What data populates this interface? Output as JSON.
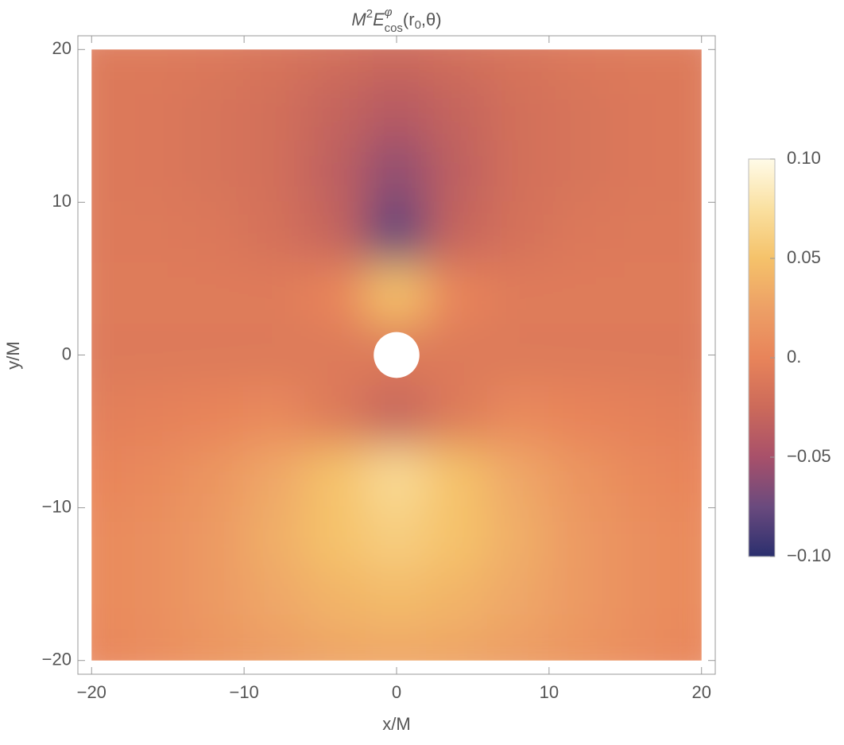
{
  "chart_data": {
    "type": "heatmap",
    "title_parts": [
      "M",
      "2",
      "E",
      "φ",
      "cos",
      "(r",
      "0",
      ",θ)"
    ],
    "x_label": "x/M",
    "y_label": "y/M",
    "x": [
      -20,
      -16,
      -12,
      -8,
      -4,
      0,
      4,
      8,
      12,
      16,
      20
    ],
    "y": [
      20,
      16,
      12,
      8,
      4,
      0,
      -4,
      -8,
      -12,
      -16,
      -20
    ],
    "z": [
      [
        -0.01,
        -0.01,
        -0.012,
        -0.015,
        -0.02,
        -0.025,
        -0.02,
        -0.015,
        -0.012,
        -0.01,
        -0.01
      ],
      [
        -0.01,
        -0.012,
        -0.015,
        -0.02,
        -0.03,
        -0.04,
        -0.03,
        -0.02,
        -0.015,
        -0.012,
        -0.01
      ],
      [
        -0.01,
        -0.012,
        -0.015,
        -0.02,
        -0.035,
        -0.06,
        -0.035,
        -0.02,
        -0.015,
        -0.012,
        -0.01
      ],
      [
        -0.01,
        -0.01,
        -0.012,
        -0.018,
        -0.03,
        -0.08,
        -0.03,
        -0.018,
        -0.012,
        -0.01,
        -0.01
      ],
      [
        -0.008,
        -0.008,
        -0.008,
        -0.008,
        0.0,
        0.05,
        0.0,
        -0.008,
        -0.008,
        -0.008,
        -0.008
      ],
      [
        -0.01,
        -0.01,
        -0.01,
        -0.01,
        -0.01,
        null,
        -0.01,
        -0.01,
        -0.01,
        -0.01,
        -0.01
      ],
      [
        -0.005,
        -0.003,
        0,
        0.005,
        -0.01,
        -0.03,
        -0.01,
        0.005,
        0,
        -0.003,
        -0.005
      ],
      [
        0,
        0.005,
        0.015,
        0.03,
        0.05,
        0.07,
        0.05,
        0.03,
        0.015,
        0.005,
        0
      ],
      [
        0.005,
        0.01,
        0.02,
        0.035,
        0.05,
        0.06,
        0.05,
        0.035,
        0.02,
        0.01,
        0.005
      ],
      [
        0.005,
        0.01,
        0.02,
        0.03,
        0.04,
        0.045,
        0.04,
        0.03,
        0.02,
        0.01,
        0.005
      ],
      [
        0.002,
        0.008,
        0.015,
        0.022,
        0.028,
        0.03,
        0.028,
        0.022,
        0.015,
        0.008,
        0.002
      ]
    ],
    "hole_radius": 1.5,
    "xlim": [
      -20.9,
      20.9
    ],
    "ylim": [
      -20.9,
      20.9
    ],
    "xticks": [
      {
        "value": -20,
        "label": "−20"
      },
      {
        "value": -10,
        "label": "−10"
      },
      0,
      10,
      20
    ],
    "yticks": [
      {
        "value": -20,
        "label": "−20"
      },
      {
        "value": -10,
        "label": "−10"
      },
      0,
      10,
      20
    ],
    "clim": [
      -0.1,
      0.1
    ],
    "cticks": [
      {
        "value": -0.1,
        "label": "−0.10"
      },
      {
        "value": -0.05,
        "label": "−0.05"
      },
      {
        "value": 0,
        "label": "0."
      },
      {
        "value": 0.05,
        "label": "0.05"
      },
      {
        "value": 0.1,
        "label": "0.10"
      }
    ],
    "colormap": [
      {
        "value": -0.1,
        "color": "#2b2f6e"
      },
      {
        "value": -0.075,
        "color": "#6a4a7e"
      },
      {
        "value": -0.05,
        "color": "#a8506a"
      },
      {
        "value": -0.025,
        "color": "#cc6a5a"
      },
      {
        "value": 0,
        "color": "#e8845a"
      },
      {
        "value": 0.025,
        "color": "#eda066"
      },
      {
        "value": 0.05,
        "color": "#f5c26a"
      },
      {
        "value": 0.075,
        "color": "#fae0a0"
      },
      {
        "value": 0.1,
        "color": "#fffbe8"
      }
    ]
  }
}
